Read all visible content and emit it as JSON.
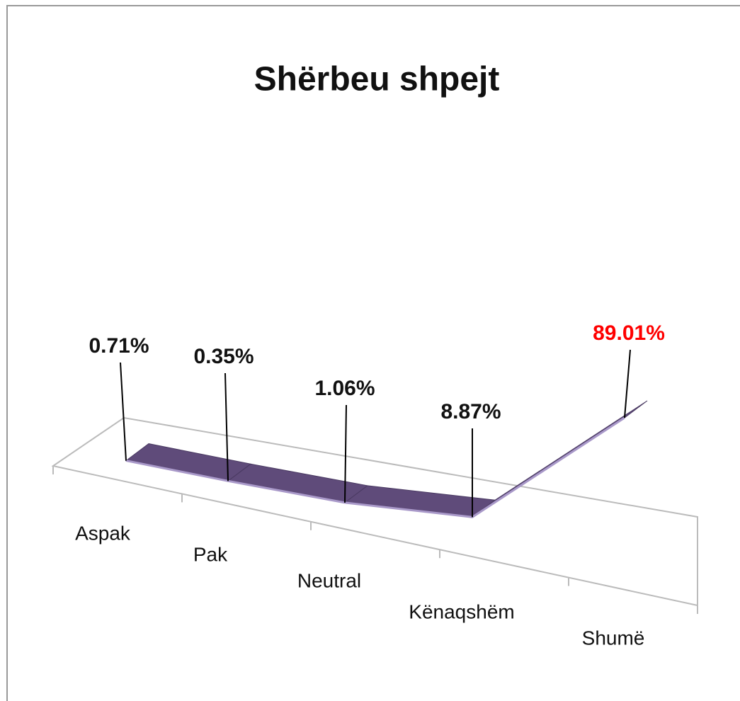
{
  "chart_data": {
    "type": "line3d",
    "title": "Shërbeu shpejt",
    "categories": [
      "Aspak",
      "Pak",
      "Neutral",
      "Kënaqshëm",
      "Shumë"
    ],
    "series": [
      {
        "name": "Shërbeu shpejt",
        "color": "#5f4b7a",
        "values": [
          0.71,
          0.35,
          1.06,
          8.87,
          89.01
        ],
        "value_labels": [
          "0.71%",
          "0.35%",
          "1.06%",
          "8.87%",
          "89.01%"
        ],
        "label_colors": [
          "#111111",
          "#111111",
          "#111111",
          "#111111",
          "#ff0000"
        ]
      }
    ]
  }
}
